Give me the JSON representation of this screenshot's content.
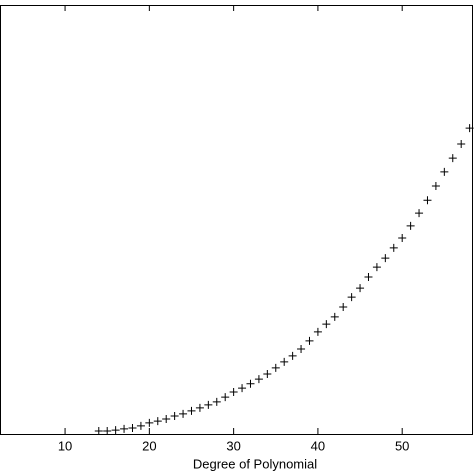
{
  "chart_data": {
    "type": "scatter",
    "x_label": "Degree of Polynomial",
    "x": [
      14,
      15,
      16,
      17,
      18,
      19,
      20,
      21,
      22,
      23,
      24,
      25,
      26,
      27,
      28,
      29,
      30,
      31,
      32,
      33,
      34,
      35,
      36,
      37,
      38,
      39,
      40,
      41,
      42,
      43,
      44,
      45,
      46,
      47,
      48,
      49,
      50,
      51,
      52,
      53,
      54,
      55,
      56,
      57,
      58
    ],
    "values": [
      0.7,
      0.7,
      0.9,
      1.2,
      1.4,
      1.9,
      2.6,
      3.0,
      3.5,
      4.2,
      4.7,
      5.4,
      6.1,
      6.8,
      7.5,
      8.6,
      9.8,
      10.7,
      11.7,
      12.8,
      14.0,
      15.4,
      16.8,
      18.2,
      19.8,
      21.7,
      23.8,
      25.6,
      27.3,
      29.6,
      31.9,
      34.0,
      36.6,
      38.9,
      41.0,
      43.4,
      45.7,
      48.5,
      51.5,
      54.5,
      57.8,
      61.1,
      64.3,
      67.6,
      71.3
    ],
    "color": "#000000",
    "marker": "+",
    "xlim": [
      2.28,
      58.52
    ],
    "xticks": [
      10,
      20,
      30,
      40,
      50
    ],
    "ylim": [
      0,
      100
    ],
    "grid": false
  }
}
